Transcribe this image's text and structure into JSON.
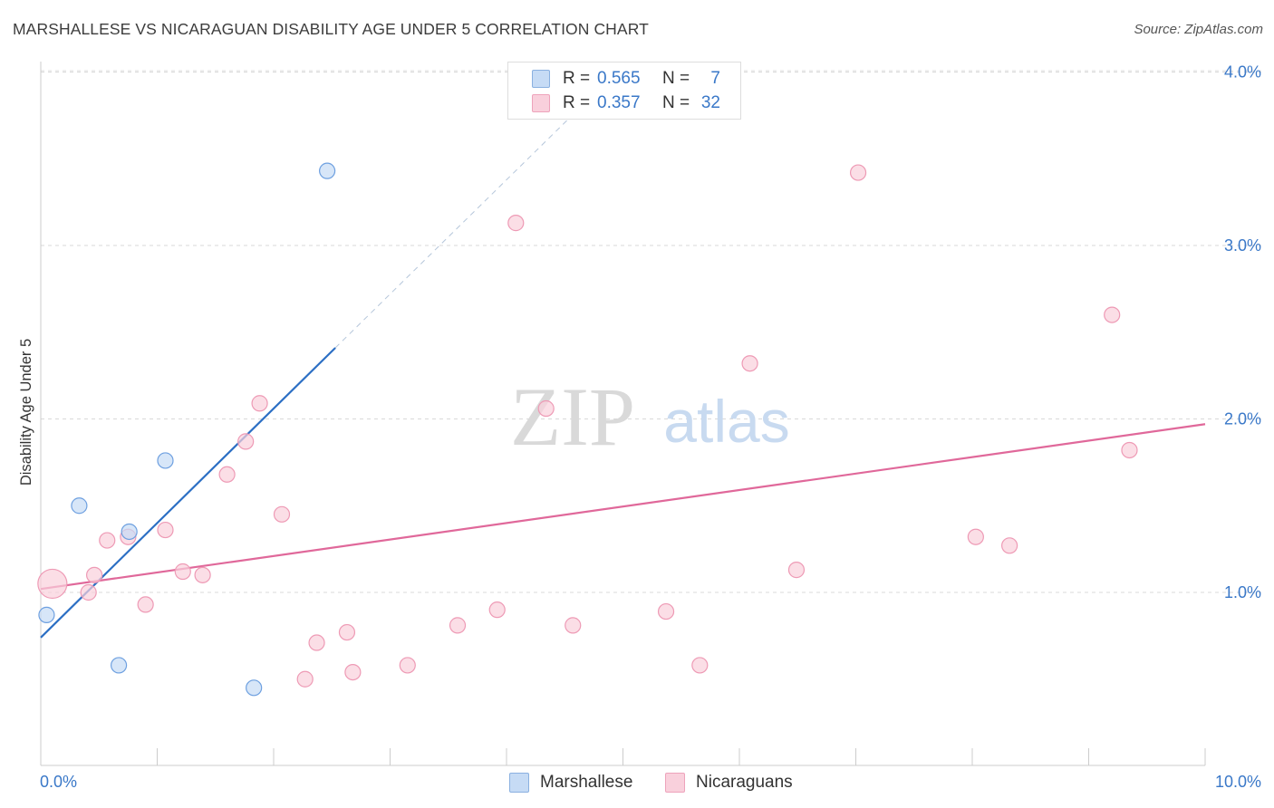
{
  "chart_data": {
    "type": "scatter",
    "title": "MARSHALLESE VS NICARAGUAN DISABILITY AGE UNDER 5 CORRELATION CHART",
    "source": "Source: ZipAtlas.com",
    "xlabel": "",
    "ylabel": "Disability Age Under 5",
    "xlim": [
      0,
      10
    ],
    "ylim": [
      0,
      4.15
    ],
    "x_tick_labels": [
      "0.0%",
      "10.0%"
    ],
    "y_ticks": [
      1,
      2,
      3,
      4
    ],
    "y_tick_labels": [
      "1.0%",
      "2.0%",
      "3.0%",
      "4.0%"
    ],
    "grid": true,
    "watermark": "ZIPatlas",
    "series": [
      {
        "name": "Marshallese",
        "color": "#6ea0e0",
        "fill": "#c6dbf5",
        "R": "0.565",
        "N": "7",
        "points": [
          {
            "x": 0.05,
            "y": 0.87
          },
          {
            "x": 0.33,
            "y": 1.5
          },
          {
            "x": 0.67,
            "y": 0.58
          },
          {
            "x": 0.76,
            "y": 1.35
          },
          {
            "x": 1.07,
            "y": 1.76
          },
          {
            "x": 1.83,
            "y": 0.45
          },
          {
            "x": 2.46,
            "y": 3.43
          }
        ],
        "trend": {
          "x1": 0.0,
          "y1": 0.74,
          "x2": 2.53,
          "y2": 2.41,
          "dash_x2": 4.7,
          "dash_y2": 3.84,
          "color": "#2c6fc4"
        }
      },
      {
        "name": "Nicaraguans",
        "color": "#ee9ab5",
        "fill": "#f9d0dc",
        "R": "0.357",
        "N": "32",
        "points": [
          {
            "x": 0.1,
            "y": 1.05,
            "big": true
          },
          {
            "x": 0.46,
            "y": 1.1
          },
          {
            "x": 0.41,
            "y": 1.0
          },
          {
            "x": 0.57,
            "y": 1.3
          },
          {
            "x": 0.75,
            "y": 1.32
          },
          {
            "x": 0.9,
            "y": 0.93
          },
          {
            "x": 1.07,
            "y": 1.36
          },
          {
            "x": 1.22,
            "y": 1.12
          },
          {
            "x": 1.39,
            "y": 1.1
          },
          {
            "x": 1.6,
            "y": 1.68
          },
          {
            "x": 1.76,
            "y": 1.87
          },
          {
            "x": 1.88,
            "y": 2.09
          },
          {
            "x": 2.07,
            "y": 1.45
          },
          {
            "x": 2.27,
            "y": 0.5
          },
          {
            "x": 2.37,
            "y": 0.71
          },
          {
            "x": 2.63,
            "y": 0.77
          },
          {
            "x": 2.68,
            "y": 0.54
          },
          {
            "x": 3.15,
            "y": 0.58
          },
          {
            "x": 3.58,
            "y": 0.81
          },
          {
            "x": 3.92,
            "y": 0.9
          },
          {
            "x": 4.08,
            "y": 3.13
          },
          {
            "x": 4.34,
            "y": 2.06
          },
          {
            "x": 4.57,
            "y": 0.81
          },
          {
            "x": 5.37,
            "y": 0.89
          },
          {
            "x": 5.66,
            "y": 0.58
          },
          {
            "x": 6.09,
            "y": 2.32
          },
          {
            "x": 6.49,
            "y": 1.13
          },
          {
            "x": 7.02,
            "y": 3.42
          },
          {
            "x": 8.03,
            "y": 1.32
          },
          {
            "x": 8.32,
            "y": 1.27
          },
          {
            "x": 9.2,
            "y": 2.6
          },
          {
            "x": 9.35,
            "y": 1.82
          }
        ],
        "trend": {
          "x1": 0.0,
          "y1": 1.02,
          "x2": 10.0,
          "y2": 1.97,
          "color": "#e0689a"
        }
      }
    ]
  },
  "legend": {
    "r_label": "R =",
    "n_label": "N ="
  }
}
